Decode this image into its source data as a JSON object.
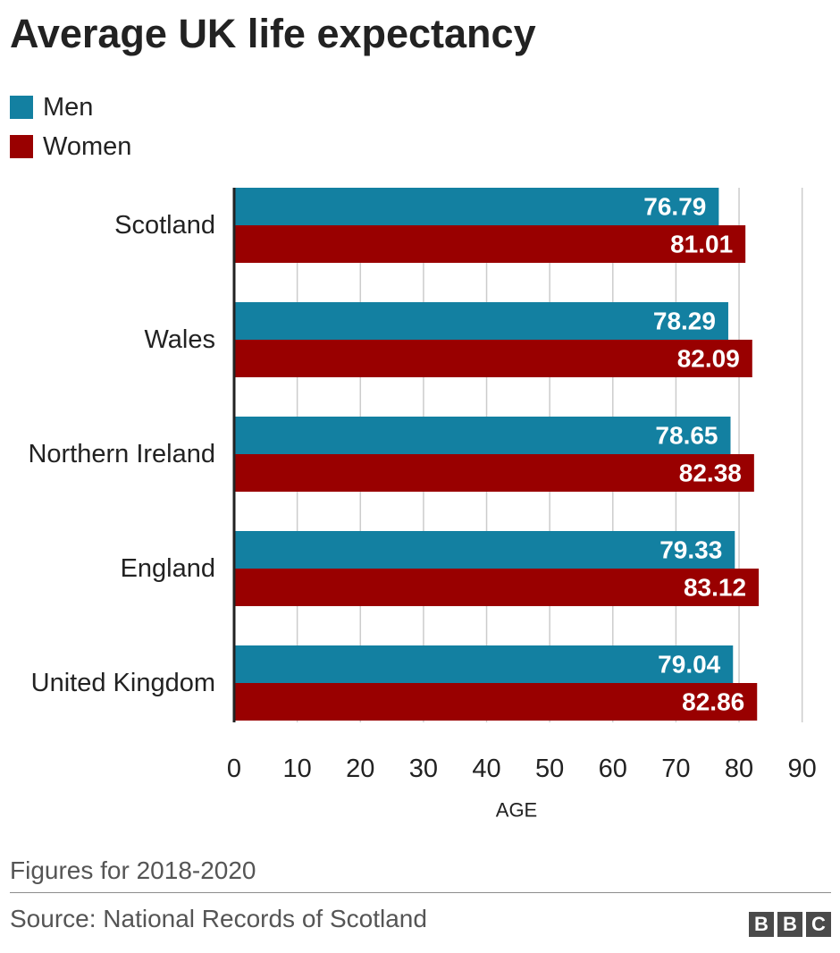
{
  "chart_data": {
    "type": "bar",
    "orientation": "horizontal",
    "title": "Average UK life expectancy",
    "categories": [
      "Scotland",
      "Wales",
      "Northern Ireland",
      "England",
      "United Kingdom"
    ],
    "series": [
      {
        "name": "Men",
        "color": "#1380a1",
        "values": [
          76.79,
          78.29,
          78.65,
          79.33,
          79.04
        ]
      },
      {
        "name": "Women",
        "color": "#990000",
        "values": [
          81.01,
          82.09,
          82.38,
          83.12,
          82.86
        ]
      }
    ],
    "xlabel": "AGE",
    "xlim": [
      0,
      90
    ],
    "xticks": [
      0,
      10,
      20,
      30,
      40,
      50,
      60,
      70,
      80,
      90
    ],
    "grid": "vertical",
    "legend": "top-left",
    "data_labels": true
  },
  "footer": {
    "note": "Figures for 2018-2020",
    "source": "Source: National Records of Scotland",
    "logo_letters": [
      "B",
      "B",
      "C"
    ]
  }
}
